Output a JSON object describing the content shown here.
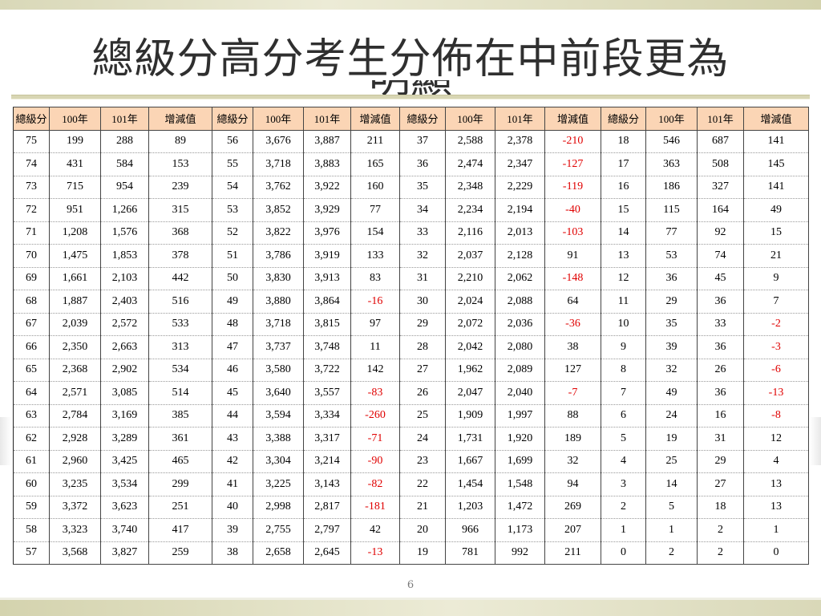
{
  "title": "總級分高分考生分佈在中前段更為",
  "title_overflow": "明顯",
  "page_number": "6",
  "colors": {
    "header_bg": "#fbd5b5",
    "negative": "#e00000"
  },
  "headers": [
    "總級分",
    "100年",
    "101年",
    "增減值",
    "總級分",
    "100年",
    "101年",
    "增減值",
    "總級分",
    "100年",
    "101年",
    "增減值",
    "總級分",
    "100年",
    "101年",
    "增減值"
  ],
  "rows": [
    [
      "75",
      "199",
      "288",
      "89",
      "56",
      "3,676",
      "3,887",
      "211",
      "37",
      "2,588",
      "2,378",
      "-210",
      "18",
      "546",
      "687",
      "141"
    ],
    [
      "74",
      "431",
      "584",
      "153",
      "55",
      "3,718",
      "3,883",
      "165",
      "36",
      "2,474",
      "2,347",
      "-127",
      "17",
      "363",
      "508",
      "145"
    ],
    [
      "73",
      "715",
      "954",
      "239",
      "54",
      "3,762",
      "3,922",
      "160",
      "35",
      "2,348",
      "2,229",
      "-119",
      "16",
      "186",
      "327",
      "141"
    ],
    [
      "72",
      "951",
      "1,266",
      "315",
      "53",
      "3,852",
      "3,929",
      "77",
      "34",
      "2,234",
      "2,194",
      "-40",
      "15",
      "115",
      "164",
      "49"
    ],
    [
      "71",
      "1,208",
      "1,576",
      "368",
      "52",
      "3,822",
      "3,976",
      "154",
      "33",
      "2,116",
      "2,013",
      "-103",
      "14",
      "77",
      "92",
      "15"
    ],
    [
      "70",
      "1,475",
      "1,853",
      "378",
      "51",
      "3,786",
      "3,919",
      "133",
      "32",
      "2,037",
      "2,128",
      "91",
      "13",
      "53",
      "74",
      "21"
    ],
    [
      "69",
      "1,661",
      "2,103",
      "442",
      "50",
      "3,830",
      "3,913",
      "83",
      "31",
      "2,210",
      "2,062",
      "-148",
      "12",
      "36",
      "45",
      "9"
    ],
    [
      "68",
      "1,887",
      "2,403",
      "516",
      "49",
      "3,880",
      "3,864",
      "-16",
      "30",
      "2,024",
      "2,088",
      "64",
      "11",
      "29",
      "36",
      "7"
    ],
    [
      "67",
      "2,039",
      "2,572",
      "533",
      "48",
      "3,718",
      "3,815",
      "97",
      "29",
      "2,072",
      "2,036",
      "-36",
      "10",
      "35",
      "33",
      "-2"
    ],
    [
      "66",
      "2,350",
      "2,663",
      "313",
      "47",
      "3,737",
      "3,748",
      "11",
      "28",
      "2,042",
      "2,080",
      "38",
      "9",
      "39",
      "36",
      "-3"
    ],
    [
      "65",
      "2,368",
      "2,902",
      "534",
      "46",
      "3,580",
      "3,722",
      "142",
      "27",
      "1,962",
      "2,089",
      "127",
      "8",
      "32",
      "26",
      "-6"
    ],
    [
      "64",
      "2,571",
      "3,085",
      "514",
      "45",
      "3,640",
      "3,557",
      "-83",
      "26",
      "2,047",
      "2,040",
      "-7",
      "7",
      "49",
      "36",
      "-13"
    ],
    [
      "63",
      "2,784",
      "3,169",
      "385",
      "44",
      "3,594",
      "3,334",
      "-260",
      "25",
      "1,909",
      "1,997",
      "88",
      "6",
      "24",
      "16",
      "-8"
    ],
    [
      "62",
      "2,928",
      "3,289",
      "361",
      "43",
      "3,388",
      "3,317",
      "-71",
      "24",
      "1,731",
      "1,920",
      "189",
      "5",
      "19",
      "31",
      "12"
    ],
    [
      "61",
      "2,960",
      "3,425",
      "465",
      "42",
      "3,304",
      "3,214",
      "-90",
      "23",
      "1,667",
      "1,699",
      "32",
      "4",
      "25",
      "29",
      "4"
    ],
    [
      "60",
      "3,235",
      "3,534",
      "299",
      "41",
      "3,225",
      "3,143",
      "-82",
      "22",
      "1,454",
      "1,548",
      "94",
      "3",
      "14",
      "27",
      "13"
    ],
    [
      "59",
      "3,372",
      "3,623",
      "251",
      "40",
      "2,998",
      "2,817",
      "-181",
      "21",
      "1,203",
      "1,472",
      "269",
      "2",
      "5",
      "18",
      "13"
    ],
    [
      "58",
      "3,323",
      "3,740",
      "417",
      "39",
      "2,755",
      "2,797",
      "42",
      "20",
      "966",
      "1,173",
      "207",
      "1",
      "1",
      "2",
      "1"
    ],
    [
      "57",
      "3,568",
      "3,827",
      "259",
      "38",
      "2,658",
      "2,645",
      "-13",
      "19",
      "781",
      "992",
      "211",
      "0",
      "2",
      "2",
      "0"
    ]
  ]
}
